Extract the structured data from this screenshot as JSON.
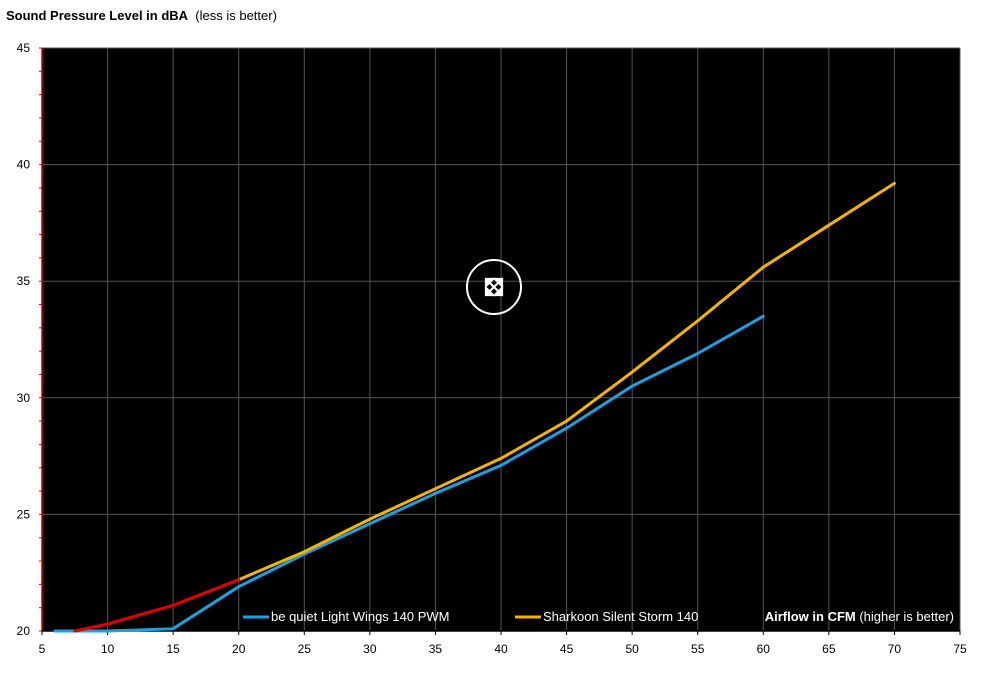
{
  "chart_data": {
    "type": "line",
    "title_bold": "Sound Pressure Level  in dBA",
    "title_note": "(less is better)",
    "xlabel_bold": "Airflow in CFM",
    "xlabel_note": "(higher is better)",
    "xlim": [
      5,
      75
    ],
    "ylim": [
      20,
      45
    ],
    "x_ticks": [
      5,
      10,
      15,
      20,
      25,
      30,
      35,
      40,
      45,
      50,
      55,
      60,
      65,
      70,
      75
    ],
    "y_ticks": [
      20,
      25,
      30,
      35,
      40,
      45
    ],
    "grid": true,
    "legend_placement": "bottom",
    "colors": {
      "background": "#000000",
      "grid": "#555555",
      "axis": "#cc0000"
    },
    "series": [
      {
        "name": "be quiet Light Wings 140 PWM",
        "color": "#1ba1e2",
        "x": [
          6,
          10,
          15,
          20,
          25,
          30,
          35,
          40,
          45,
          50,
          55,
          60
        ],
        "y": [
          20.0,
          20.0,
          20.1,
          21.9,
          23.3,
          24.6,
          25.9,
          27.1,
          28.7,
          30.5,
          31.9,
          33.5
        ]
      },
      {
        "name": "Sharkoon Silent Storm 140",
        "color": "#f5b400",
        "x": [
          20,
          25,
          30,
          35,
          40,
          45,
          50,
          55,
          60,
          65,
          70
        ],
        "y": [
          22.2,
          23.4,
          24.8,
          26.1,
          27.4,
          29.0,
          31.1,
          33.3,
          35.6,
          37.4,
          39.2
        ]
      },
      {
        "name": "",
        "color": "#e00000",
        "x": [
          7.5,
          10,
          15,
          20
        ],
        "y": [
          20.0,
          20.3,
          21.1,
          22.2
        ]
      }
    ]
  }
}
